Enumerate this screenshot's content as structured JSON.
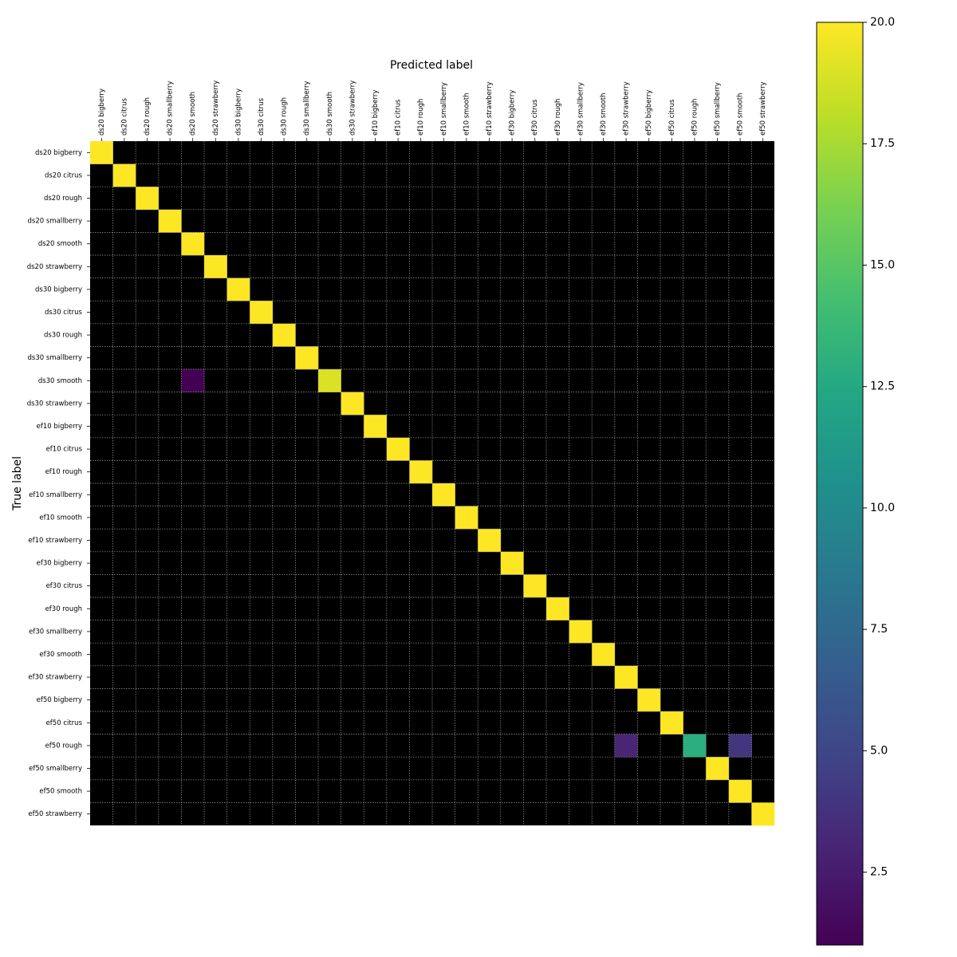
{
  "chart_data": {
    "type": "heatmap",
    "title": "",
    "xlabel": "Predicted label",
    "ylabel": "True label",
    "labels": [
      "ds20 bigberry",
      "ds20 citrus",
      "ds20 rough",
      "ds20 smallberry",
      "ds20 smooth",
      "ds20 strawberry",
      "ds30 bigberry",
      "ds30 citrus",
      "ds30 rough",
      "ds30 smallberry",
      "ds30 smooth",
      "ds30 strawberry",
      "ef10 bigberry",
      "ef10 citrus",
      "ef10 rough",
      "ef10 smallberry",
      "ef10 smooth",
      "ef10 strawberry",
      "ef30 bigberry",
      "ef30 citrus",
      "ef30 rough",
      "ef30 smallberry",
      "ef30 smooth",
      "ef30 strawberry",
      "ef50 bigberry",
      "ef50 citrus",
      "ef50 rough",
      "ef50 smallberry",
      "ef50 smooth",
      "ef50 strawberry"
    ],
    "diagonal": [
      20,
      20,
      20,
      20,
      20,
      20,
      20,
      20,
      20,
      20,
      19,
      20,
      20,
      20,
      20,
      20,
      20,
      20,
      20,
      20,
      20,
      20,
      20,
      20,
      20,
      20,
      13,
      20,
      20,
      20
    ],
    "off_diagonal": [
      {
        "true": "ds30 smooth",
        "predicted": "ds20 smooth",
        "value": 1
      },
      {
        "true": "ef50 rough",
        "predicted": "ef30 strawberry",
        "value": 3
      },
      {
        "true": "ef50 rough",
        "predicted": "ef50 smooth",
        "value": 4
      }
    ],
    "colorbar": {
      "colormap": "viridis",
      "range": [
        1,
        20
      ],
      "ticks": [
        "2.5",
        "5.0",
        "7.5",
        "10.0",
        "12.5",
        "15.0",
        "17.5",
        "20.0"
      ],
      "tick_values": [
        2.5,
        5,
        7.5,
        10,
        12.5,
        15,
        17.5,
        20
      ]
    },
    "zero_color": "#000000",
    "grid": true,
    "grid_color": "#9a9a9a"
  }
}
